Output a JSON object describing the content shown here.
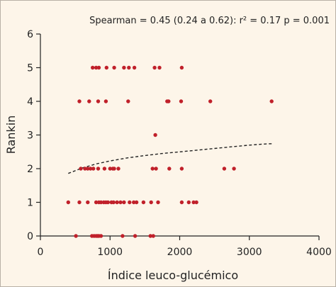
{
  "chart_data": {
    "type": "scatter",
    "title": "",
    "annotation": "Spearman = 0.45 (0.24 a 0.62): r² = 0.17 p = 0.001",
    "xlabel": "Índice leuco-glucémico",
    "ylabel": "Rankin",
    "xlim": [
      0,
      4000
    ],
    "ylim": [
      0,
      6
    ],
    "xticks": [
      0,
      1000,
      2000,
      3000,
      4000
    ],
    "yticks": [
      0,
      1,
      2,
      3,
      4,
      5,
      6
    ],
    "grid": false,
    "legend": "none",
    "point_color": "#c0202a",
    "trend_color": "#222222",
    "series": [
      {
        "points": [
          [
            510,
            0
          ],
          [
            740,
            0
          ],
          [
            770,
            0
          ],
          [
            800,
            0
          ],
          [
            820,
            0
          ],
          [
            840,
            0
          ],
          [
            870,
            0
          ],
          [
            1180,
            0
          ],
          [
            1360,
            0
          ],
          [
            1580,
            0
          ],
          [
            1620,
            0
          ],
          [
            400,
            1
          ],
          [
            560,
            1
          ],
          [
            680,
            1
          ],
          [
            800,
            1
          ],
          [
            840,
            1
          ],
          [
            870,
            1
          ],
          [
            910,
            1
          ],
          [
            940,
            1
          ],
          [
            970,
            1
          ],
          [
            1020,
            1
          ],
          [
            1050,
            1
          ],
          [
            1100,
            1
          ],
          [
            1150,
            1
          ],
          [
            1200,
            1
          ],
          [
            1280,
            1
          ],
          [
            1340,
            1
          ],
          [
            1380,
            1
          ],
          [
            1480,
            1
          ],
          [
            1590,
            1
          ],
          [
            1690,
            1
          ],
          [
            2030,
            1
          ],
          [
            2130,
            1
          ],
          [
            2200,
            1
          ],
          [
            2240,
            1
          ],
          [
            580,
            2
          ],
          [
            640,
            2
          ],
          [
            680,
            2
          ],
          [
            720,
            2
          ],
          [
            760,
            2
          ],
          [
            830,
            2
          ],
          [
            920,
            2
          ],
          [
            1000,
            2
          ],
          [
            1040,
            2
          ],
          [
            1060,
            2
          ],
          [
            1120,
            2
          ],
          [
            1610,
            2
          ],
          [
            1660,
            2
          ],
          [
            1850,
            2
          ],
          [
            2030,
            2
          ],
          [
            2640,
            2
          ],
          [
            2780,
            2
          ],
          [
            1650,
            3
          ],
          [
            560,
            4
          ],
          [
            700,
            4
          ],
          [
            830,
            4
          ],
          [
            940,
            4
          ],
          [
            1260,
            4
          ],
          [
            1820,
            4
          ],
          [
            1840,
            4
          ],
          [
            2020,
            4
          ],
          [
            2440,
            4
          ],
          [
            3320,
            4
          ],
          [
            750,
            5
          ],
          [
            800,
            5
          ],
          [
            840,
            5
          ],
          [
            950,
            5
          ],
          [
            1060,
            5
          ],
          [
            1200,
            5
          ],
          [
            1270,
            5
          ],
          [
            1350,
            5
          ],
          [
            1640,
            5
          ],
          [
            1710,
            5
          ],
          [
            2030,
            5
          ]
        ]
      }
    ],
    "trend_line": [
      [
        400,
        1.86
      ],
      [
        600,
        2.02
      ],
      [
        800,
        2.14
      ],
      [
        1000,
        2.23
      ],
      [
        1250,
        2.32
      ],
      [
        1500,
        2.39
      ],
      [
        1750,
        2.45
      ],
      [
        2000,
        2.5
      ],
      [
        2250,
        2.55
      ],
      [
        2500,
        2.6
      ],
      [
        2750,
        2.65
      ],
      [
        3000,
        2.7
      ],
      [
        3200,
        2.73
      ],
      [
        3320,
        2.74
      ]
    ]
  }
}
